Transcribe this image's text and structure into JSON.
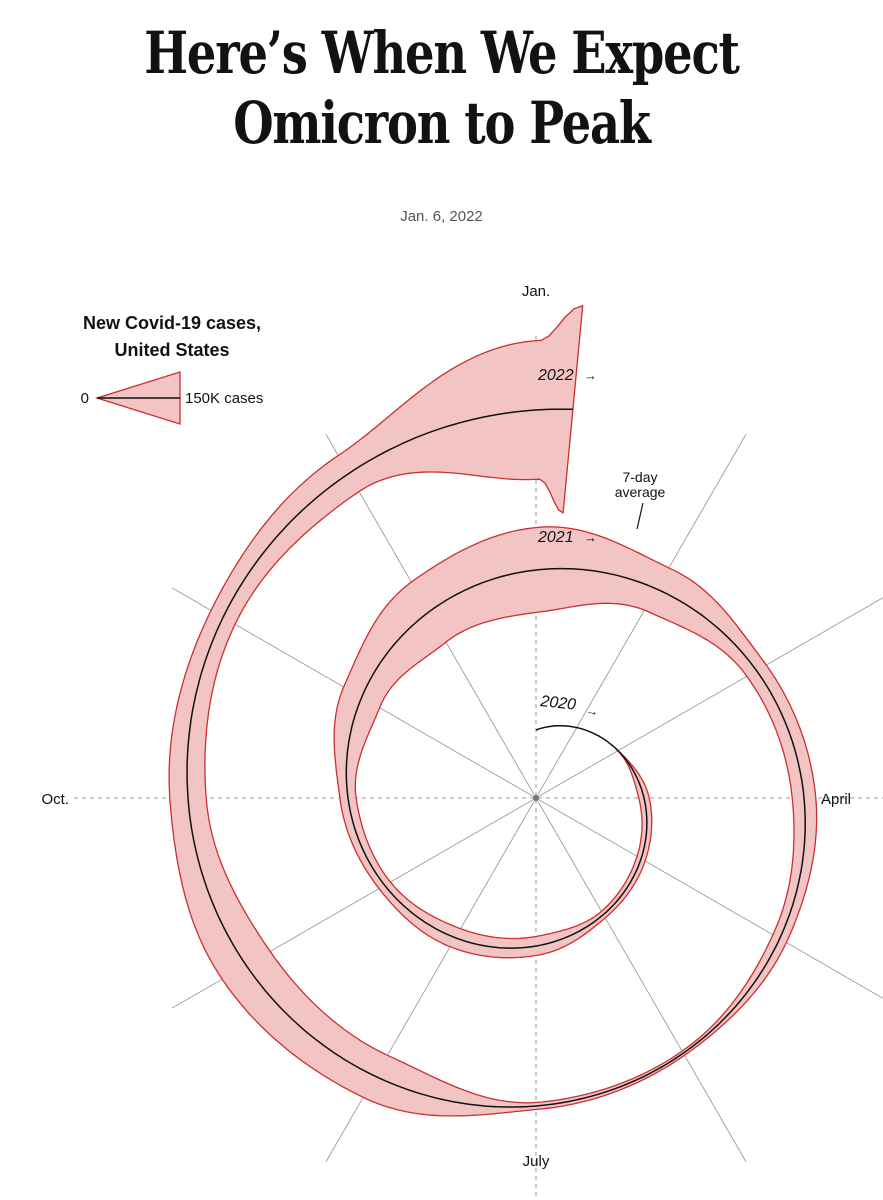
{
  "header": {
    "title": "Here’s When We Expect Omicron to Peak",
    "date": "Jan. 6, 2022"
  },
  "chart_data": {
    "type": "area",
    "subtype": "spiral",
    "title": "New Covid-19 cases, United States",
    "month_labels": {
      "top": "Jan.",
      "right": "April",
      "bottom": "July",
      "left": "Oct."
    },
    "year_labels": [
      "2020",
      "2021",
      "2022"
    ],
    "annotation": "7-day average",
    "legend": {
      "zero_label": "0",
      "max_label": "150K cases",
      "max_value": 150000
    },
    "unit": "cases",
    "colors": {
      "band_fill": "#f2c4c4",
      "band_stroke": "#cc2f2f",
      "baseline": "#121212",
      "grid": "#9a9a9a"
    },
    "series": [
      {
        "name": "7-day average",
        "x": [
          "2020-03-01",
          "2020-04-01",
          "2020-05-01",
          "2020-06-01",
          "2020-07-01",
          "2020-08-01",
          "2020-09-01",
          "2020-10-01",
          "2020-11-01",
          "2020-12-01",
          "2021-01-01",
          "2021-02-01",
          "2021-03-01",
          "2021-04-01",
          "2021-05-01",
          "2021-06-01",
          "2021-07-01",
          "2021-08-01",
          "2021-09-01",
          "2021-10-01",
          "2021-11-01",
          "2021-12-01",
          "2022-01-01",
          "2022-01-06"
        ],
        "values": [
          1000,
          30000,
          27000,
          22000,
          55000,
          60000,
          38000,
          47000,
          120000,
          200000,
          245000,
          140000,
          65000,
          68000,
          45000,
          14000,
          20000,
          140000,
          160000,
          105000,
          80000,
          120000,
          400000,
          600000
        ]
      }
    ]
  }
}
